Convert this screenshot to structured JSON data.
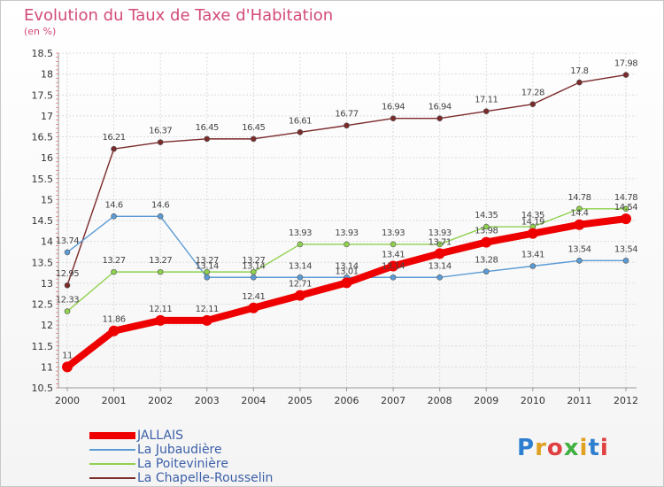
{
  "title": "Evolution du Taux de Taxe d'Habitation",
  "subtitle": "(en %)",
  "logo": {
    "text": "Proxiti",
    "colors": [
      "#2f7fd0",
      "#e0a020",
      "#e04040",
      "#40b040",
      "#e0a020",
      "#2f7fd0",
      "#e04040"
    ]
  },
  "chart_data": {
    "type": "line",
    "title": "Evolution du Taux de Taxe d'Habitation",
    "ylabel": "(en %)",
    "xlabel": "",
    "x": [
      "2000",
      "2001",
      "2002",
      "2003",
      "2004",
      "2005",
      "2006",
      "2007",
      "2008",
      "2009",
      "2010",
      "2011",
      "2012"
    ],
    "ylim": [
      10.5,
      18.5
    ],
    "yticks": [
      10.5,
      11,
      11.5,
      12,
      12.5,
      13,
      13.5,
      14,
      14.5,
      15,
      15.5,
      16,
      16.5,
      17,
      17.5,
      18,
      18.5
    ],
    "ytick_labels": [
      "10.5",
      "11",
      "11.5",
      "12",
      "12.5",
      "13",
      "13.5",
      "14",
      "14.5",
      "15",
      "15.5",
      "16",
      "16.5",
      "17",
      "17.5",
      "18",
      "18.5"
    ],
    "grid": true,
    "legend_position": "bottom-left",
    "series": [
      {
        "name": "La Chapelle-Rousselin",
        "color": "#7b2a2a",
        "values": [
          12.95,
          16.21,
          16.37,
          16.45,
          16.45,
          16.61,
          16.77,
          16.94,
          16.94,
          17.11,
          17.28,
          17.8,
          17.98
        ],
        "labels": [
          "12.95",
          "16.21",
          "16.37",
          "16.45",
          "16.45",
          "16.61",
          "16.77",
          "16.94",
          "16.94",
          "17.11",
          "17.28",
          "17.8",
          "17.98"
        ]
      },
      {
        "name": "La Jubaudière",
        "color": "#5b9bd5",
        "values": [
          13.74,
          14.6,
          14.6,
          13.14,
          13.14,
          13.14,
          13.14,
          13.14,
          13.14,
          13.28,
          13.41,
          13.54,
          13.54
        ],
        "labels": [
          "13.74",
          "14.6",
          "14.6",
          "13.14",
          "13.14",
          "13.14",
          "13.14",
          "13.14",
          "13.14",
          "13.28",
          "13.41",
          "13.54",
          "13.54"
        ]
      },
      {
        "name": "La Poitevinière",
        "color": "#8fd14f",
        "values": [
          12.33,
          13.27,
          13.27,
          13.27,
          13.27,
          13.93,
          13.93,
          13.93,
          13.93,
          14.35,
          14.35,
          14.78,
          14.78
        ],
        "labels": [
          "12.33",
          "13.27",
          "13.27",
          "13.27",
          "13.27",
          "13.93",
          "13.93",
          "13.93",
          "13.93",
          "14.35",
          "14.35",
          "14.78",
          "14.78"
        ]
      },
      {
        "name": "JALLAIS",
        "color": "#ee0000",
        "values": [
          11,
          11.86,
          12.11,
          12.11,
          12.41,
          12.71,
          13.01,
          13.41,
          13.71,
          13.98,
          14.19,
          14.4,
          14.54
        ],
        "labels": [
          "11",
          "11.86",
          "12.11",
          "12.11",
          "12.41",
          "12.71",
          "13.01",
          "13.41",
          "13.71",
          "13.98",
          "14.19",
          "14.4",
          "14.54"
        ]
      }
    ]
  },
  "legend": [
    {
      "label": "JALLAIS",
      "color": "#ee0000"
    },
    {
      "label": "La Jubaudière",
      "color": "#5b9bd5"
    },
    {
      "label": "La Poitevinière",
      "color": "#8fd14f"
    },
    {
      "label": "La Chapelle-Rousselin",
      "color": "#7b2a2a"
    }
  ]
}
